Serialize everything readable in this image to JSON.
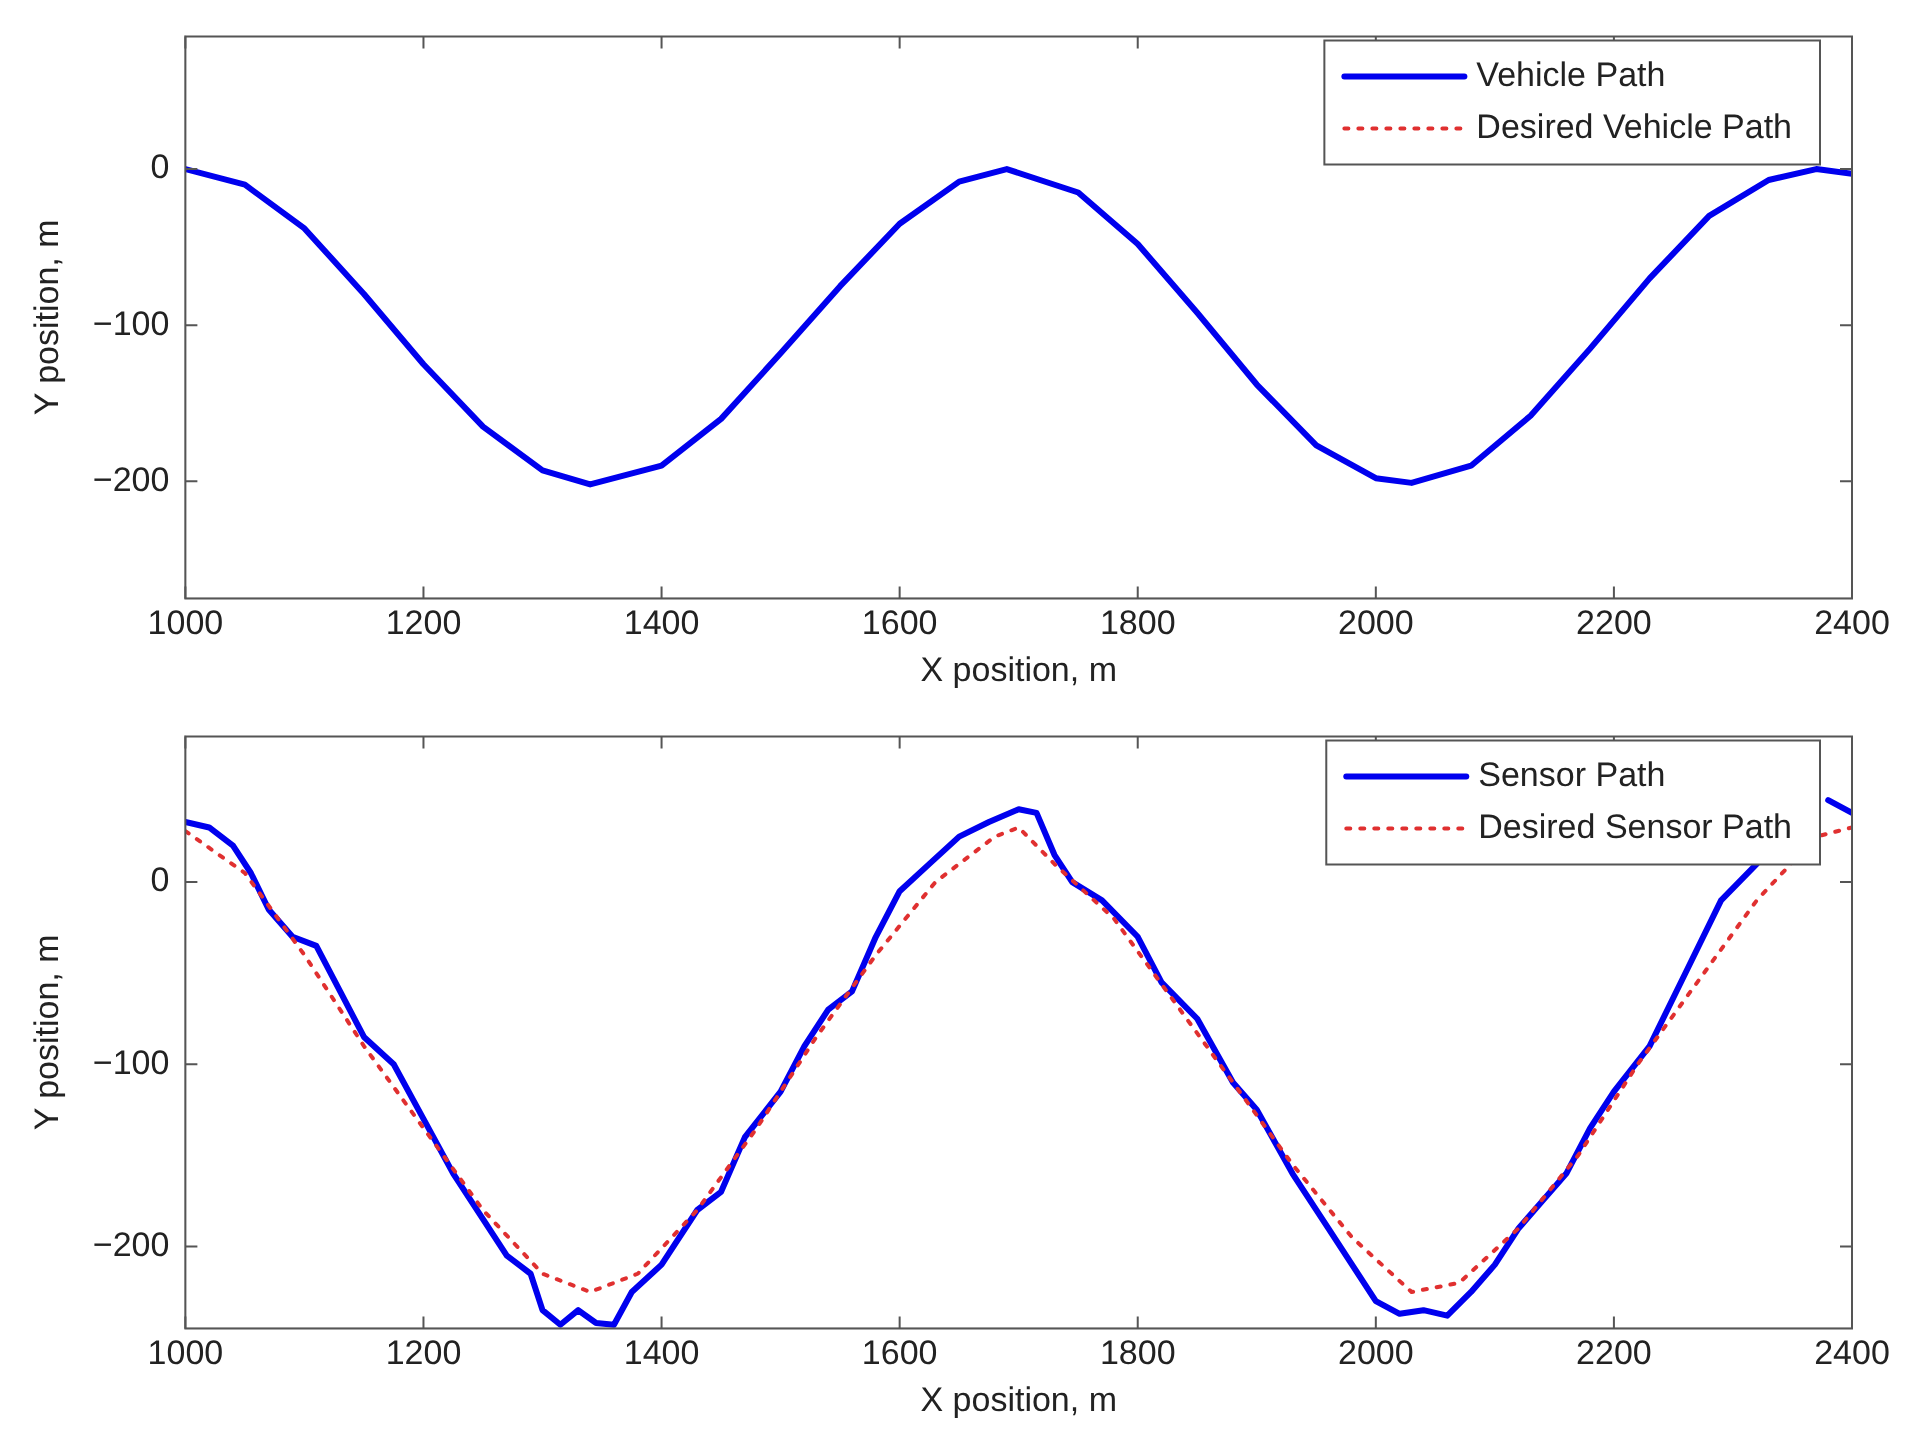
{
  "chart_data": [
    {
      "type": "line",
      "xlabel": "X position, m",
      "ylabel": "Y position, m",
      "xlim": [
        1000,
        2400
      ],
      "ylim": [
        -275,
        85
      ],
      "xticks": [
        1000,
        1200,
        1400,
        1600,
        1800,
        2000,
        2200,
        2400
      ],
      "yticks": [
        -200,
        -100,
        0
      ],
      "grid": false,
      "legend": "top right",
      "marker": "none",
      "series": [
        {
          "name": "Vehicle Path",
          "color": "#0000ee",
          "line_style": "solid",
          "x": [
            1000,
            1050,
            1100,
            1150,
            1200,
            1250,
            1300,
            1340,
            1400,
            1450,
            1500,
            1550,
            1600,
            1650,
            1690,
            1750,
            1800,
            1850,
            1900,
            1950,
            2000,
            2030,
            2080,
            2130,
            2180,
            2230,
            2280,
            2330,
            2370,
            2400
          ],
          "values": [
            0,
            -10,
            -38,
            -80,
            -125,
            -165,
            -193,
            -202,
            -190,
            -160,
            -118,
            -75,
            -35,
            -8,
            0,
            -15,
            -48,
            -92,
            -138,
            -177,
            -198,
            -201,
            -190,
            -158,
            -115,
            -70,
            -30,
            -7,
            0,
            -3
          ]
        },
        {
          "name": "Desired Vehicle Path",
          "color": "#e03030",
          "line_style": "dotted"
        }
      ]
    },
    {
      "type": "line",
      "xlabel": "X position, m",
      "ylabel": "Y position, m",
      "xlim": [
        1000,
        2400
      ],
      "ylim": [
        -245,
        80
      ],
      "xticks": [
        1000,
        1200,
        1400,
        1600,
        1800,
        2000,
        2200,
        2400
      ],
      "yticks": [
        -200,
        -100,
        0
      ],
      "grid": false,
      "legend": "top right",
      "marker": "none",
      "series": [
        {
          "name": "Desired Sensor Path",
          "color": "#e03030",
          "line_style": "dotted",
          "x": [
            1000,
            1050,
            1100,
            1150,
            1200,
            1250,
            1300,
            1340,
            1380,
            1430,
            1480,
            1530,
            1580,
            1630,
            1680,
            1700,
            1730,
            1780,
            1830,
            1880,
            1930,
            1980,
            2030,
            2070,
            2120,
            2170,
            2220,
            2270,
            2320,
            2370,
            2400
          ],
          "values": [
            28,
            5,
            -40,
            -90,
            -135,
            -180,
            -215,
            -225,
            -215,
            -180,
            -135,
            -85,
            -40,
            0,
            25,
            30,
            10,
            -20,
            -65,
            -110,
            -155,
            -195,
            -225,
            -220,
            -190,
            -150,
            -100,
            -55,
            -10,
            25,
            30
          ]
        },
        {
          "name": "Sensor Path",
          "color": "#0000ee",
          "line_style": "solid",
          "x": [
            1000,
            1020,
            1040,
            1055,
            1070,
            1090,
            1110,
            1130,
            1150,
            1175,
            1200,
            1225,
            1250,
            1270,
            1290,
            1300,
            1315,
            1330,
            1345,
            1360,
            1375,
            1400,
            1430,
            1450,
            1470,
            1500,
            1520,
            1540,
            1560,
            1580,
            1600,
            1625,
            1650,
            1675,
            1700,
            1715,
            1730,
            1745,
            1770,
            1800,
            1820,
            1850,
            1880,
            1900,
            1930,
            1960,
            1980,
            2000,
            2020,
            2040,
            2060,
            2080,
            2100,
            2120,
            2140,
            2160,
            2180,
            2200,
            2230,
            2260,
            2290,
            2320,
            2350,
            2380,
            2400
          ],
          "values": [
            33,
            30,
            20,
            5,
            -15,
            -30,
            -35,
            -60,
            -85,
            -100,
            -130,
            -160,
            -185,
            -205,
            -215,
            -235,
            -243,
            -235,
            -242,
            -243,
            -225,
            -210,
            -180,
            -170,
            -140,
            -115,
            -90,
            -70,
            -60,
            -30,
            -5,
            10,
            25,
            33,
            40,
            38,
            15,
            0,
            -10,
            -30,
            -55,
            -75,
            -110,
            -125,
            -160,
            -190,
            -210,
            -230,
            -237,
            -235,
            -238,
            -225,
            -210,
            -190,
            -175,
            -160,
            -135,
            -115,
            -90,
            -50,
            -10,
            10,
            null,
            45,
            38
          ]
        }
      ]
    }
  ]
}
